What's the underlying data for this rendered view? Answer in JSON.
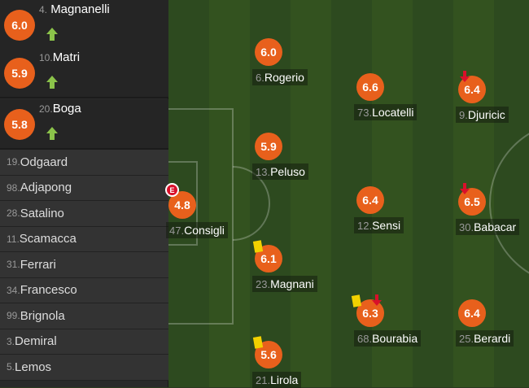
{
  "colors": {
    "rating": "#e8601c",
    "sub_in": "#8bc34a",
    "sub_out": "#d9102a",
    "yellow_card": "#f2d100"
  },
  "substitutes": [
    {
      "number": "4.",
      "name": "Magnanelli",
      "rating": "6.0",
      "icon": "arrow-up-icon"
    },
    {
      "number": "10.",
      "name": "Matri",
      "rating": "5.9",
      "icon": "arrow-up-icon"
    },
    {
      "number": "20.",
      "name": "Boga",
      "rating": "5.8",
      "icon": "arrow-up-icon"
    }
  ],
  "bench": [
    {
      "number": "19.",
      "name": "Odgaard"
    },
    {
      "number": "98.",
      "name": "Adjapong"
    },
    {
      "number": "28.",
      "name": "Satalino"
    },
    {
      "number": "11.",
      "name": "Scamacca"
    },
    {
      "number": "31.",
      "name": "Ferrari"
    },
    {
      "number": "34.",
      "name": "Francesco"
    },
    {
      "number": "99.",
      "name": "Brignola"
    },
    {
      "number": "3.",
      "name": "Demiral"
    },
    {
      "number": "5.",
      "name": "Lemos"
    }
  ],
  "players": [
    {
      "number": "6.",
      "name": "Rogerio",
      "rating": "6.0"
    },
    {
      "number": "73.",
      "name": "Locatelli",
      "rating": "6.6"
    },
    {
      "number": "9.",
      "name": "Djuricic",
      "rating": "6.4",
      "subbed_off": true
    },
    {
      "number": "13.",
      "name": "Peluso",
      "rating": "5.9"
    },
    {
      "number": "47.",
      "name": "Consigli",
      "rating": "4.8",
      "badge": "E"
    },
    {
      "number": "12.",
      "name": "Sensi",
      "rating": "6.4"
    },
    {
      "number": "30.",
      "name": "Babacar",
      "rating": "6.5",
      "subbed_off": true
    },
    {
      "number": "23.",
      "name": "Magnani",
      "rating": "6.1",
      "yellow_card": true
    },
    {
      "number": "68.",
      "name": "Bourabia",
      "rating": "6.3",
      "yellow_card": true,
      "subbed_off": true
    },
    {
      "number": "25.",
      "name": "Berardi",
      "rating": "6.4"
    },
    {
      "number": "21.",
      "name": "Lirola",
      "rating": "5.6",
      "yellow_card": true
    }
  ]
}
